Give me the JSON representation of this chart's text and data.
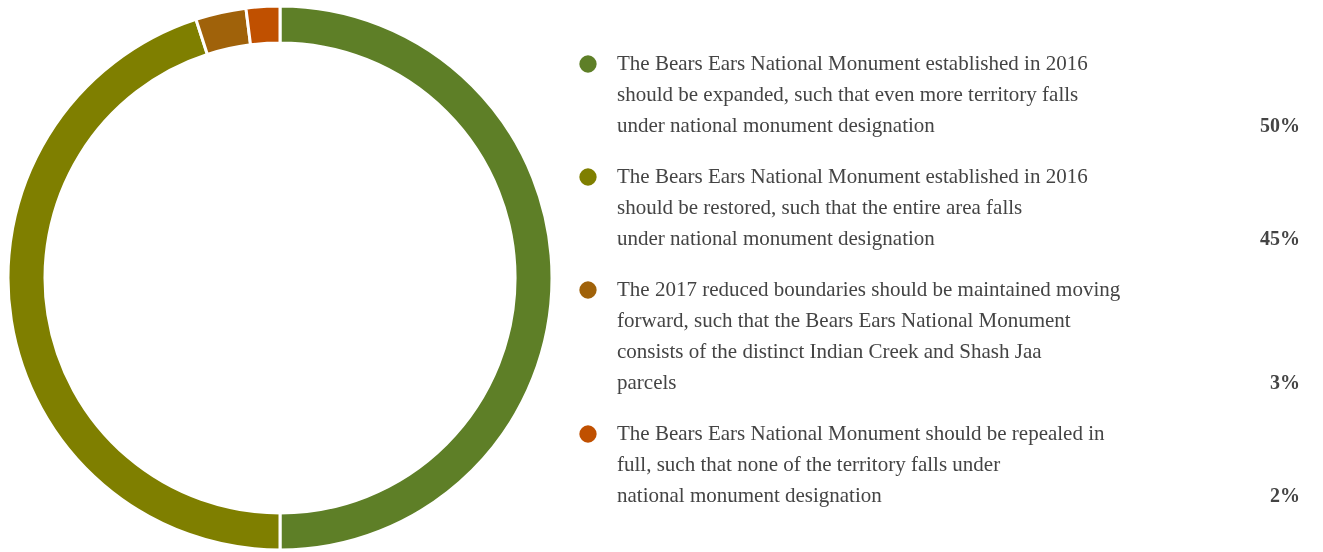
{
  "chart_data": {
    "type": "donut",
    "categories": [
      "The Bears Ears National Monument established in 2016 should be expanded, such that even more territory falls under national monument designation",
      "The Bears Ears National Monument established in 2016 should be restored, such that the entire area falls under national monument designation",
      "The 2017 reduced boundaries should be maintained moving forward, such that the Bears Ears National Monument consists of the distinct Indian Creek and Shash Jaa parcels",
      "The Bears Ears National Monument should be repealed in full, such that none of the territory falls under national monument designation"
    ],
    "values": [
      50,
      45,
      3,
      2
    ],
    "colors": [
      "#5e7f27",
      "#7f7f00",
      "#a0620a",
      "#c05000"
    ],
    "annotations": [
      "50%",
      "45%",
      "3%",
      "2%"
    ],
    "legend": "right"
  }
}
